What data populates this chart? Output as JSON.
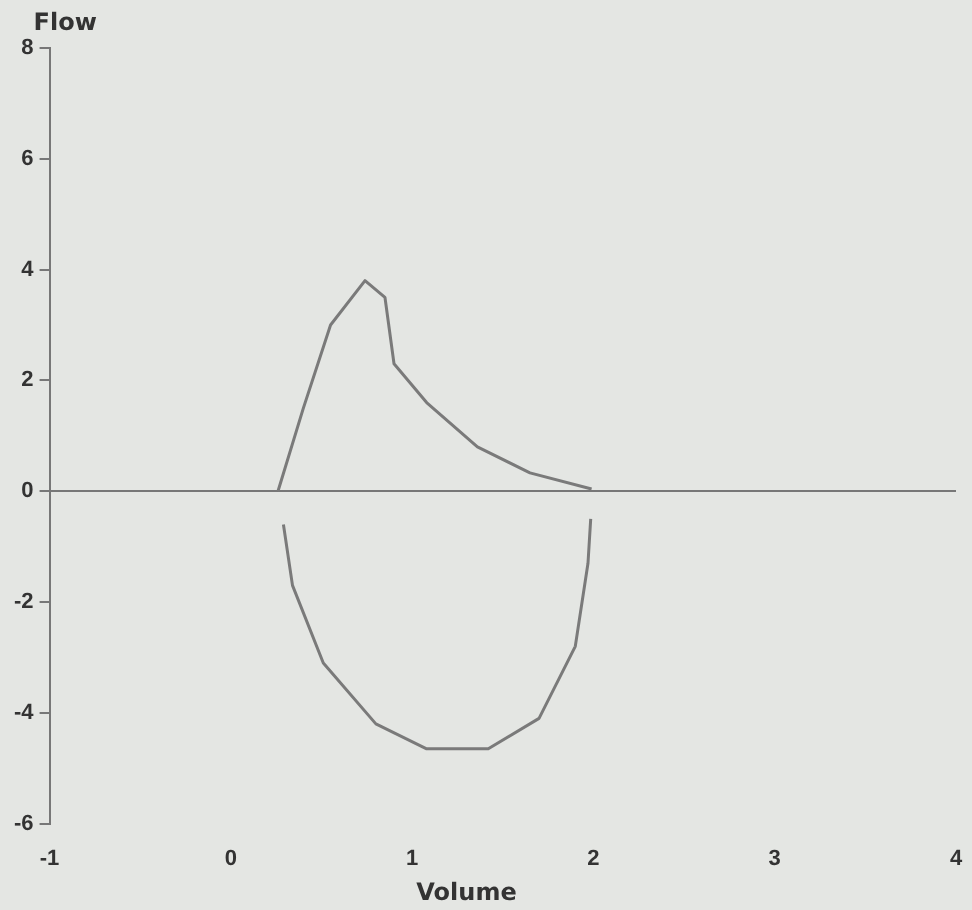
{
  "chart_data": {
    "type": "line",
    "xlabel": "Volume",
    "ylabel": "Flow",
    "series": [
      {
        "color": "#7a7a7a",
        "x": [
          0.26,
          0.4,
          0.55,
          0.74,
          0.85,
          0.9,
          1.08,
          1.36,
          1.65,
          1.99
        ],
        "values": [
          0,
          1.5,
          3,
          3.8,
          3.5,
          2.3,
          1.6,
          0.8,
          0.33,
          0.04
        ]
      },
      {
        "color": "#7a7a7a",
        "x": [
          0.29,
          0.34,
          0.51,
          0.8,
          1.08,
          1.42,
          1.7,
          1.9,
          1.97,
          1.985
        ],
        "values": [
          -0.6,
          -1.7,
          -3.1,
          -4.2,
          -4.65,
          -4.65,
          -4.1,
          -2.8,
          -1.3,
          -0.5
        ]
      }
    ],
    "xlim": [
      -1,
      4
    ],
    "xticks": [
      -1,
      0,
      1,
      2,
      3,
      4
    ],
    "ylim": [
      -6,
      8
    ],
    "yticks": [
      -6,
      -4,
      -2,
      0,
      2,
      4,
      6,
      8
    ],
    "marker": "none",
    "legend": false
  }
}
